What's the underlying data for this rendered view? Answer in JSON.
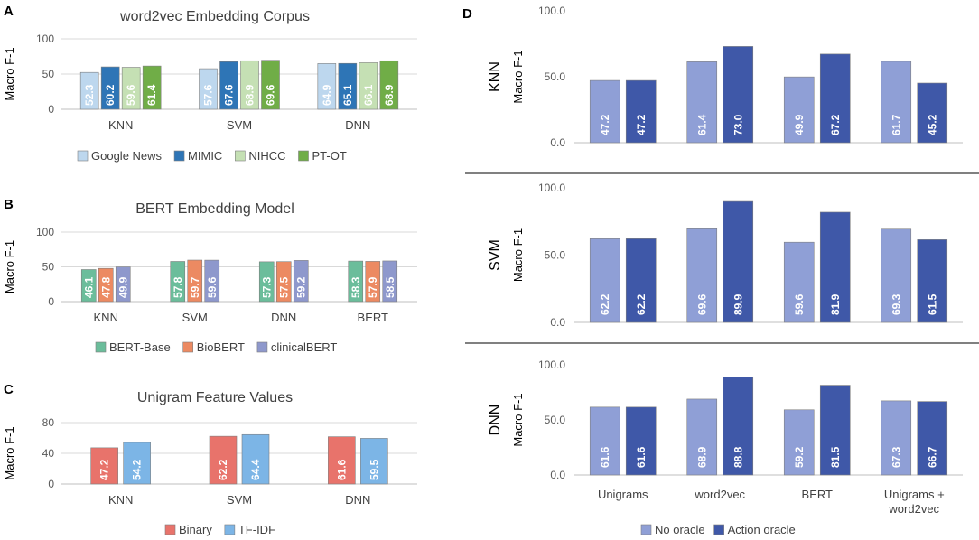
{
  "chart_data": [
    {
      "panel": "A",
      "type": "bar",
      "title": "word2vec Embedding Corpus",
      "ylabel": "Macro F-1",
      "ylim": [
        0,
        100
      ],
      "yticks": [
        "0",
        "50",
        "100"
      ],
      "categories": [
        "KNN",
        "SVM",
        "DNN"
      ],
      "series": [
        {
          "name": "Google News",
          "color": "#bdd7ee",
          "values": [
            52.3,
            57.6,
            64.9
          ],
          "labels": [
            "52.3",
            "57.6",
            "64.9"
          ]
        },
        {
          "name": "MIMIC",
          "color": "#2e75b6",
          "values": [
            60.2,
            67.6,
            65.1
          ],
          "labels": [
            "60.2",
            "67.6",
            "65.1"
          ]
        },
        {
          "name": "NIHCC",
          "color": "#c5e0b4",
          "values": [
            59.6,
            68.9,
            66.1
          ],
          "labels": [
            "59.6",
            "68.9",
            "66.1"
          ]
        },
        {
          "name": "PT-OT",
          "color": "#70ad47",
          "values": [
            61.4,
            69.6,
            68.9
          ],
          "labels": [
            "61.4",
            "69.6",
            "68.9"
          ]
        }
      ]
    },
    {
      "panel": "B",
      "type": "bar",
      "title": "BERT Embedding Model",
      "ylabel": "Macro F-1",
      "ylim": [
        0,
        100
      ],
      "yticks": [
        "0",
        "50",
        "100"
      ],
      "categories": [
        "KNN",
        "SVM",
        "DNN",
        "BERT"
      ],
      "series": [
        {
          "name": "BERT-Base",
          "color": "#6bbd9b",
          "values": [
            46.1,
            57.8,
            57.3,
            58.3
          ],
          "labels": [
            "46.1",
            "57.8",
            "57.3",
            "58.3"
          ]
        },
        {
          "name": "BioBERT",
          "color": "#ec8a62",
          "values": [
            47.8,
            59.7,
            57.5,
            57.9
          ],
          "labels": [
            "47.8",
            "59.7",
            "57.5",
            "57.9"
          ]
        },
        {
          "name": "clinicalBERT",
          "color": "#8e98cc",
          "values": [
            49.9,
            59.6,
            59.2,
            58.5
          ],
          "labels": [
            "49.9",
            "59.6",
            "59.2",
            "58.5"
          ]
        }
      ]
    },
    {
      "panel": "C",
      "type": "bar",
      "title": "Unigram Feature Values",
      "ylabel": "Macro F-1",
      "ylim": [
        0,
        80
      ],
      "yticks": [
        "0",
        "40",
        "80"
      ],
      "categories": [
        "KNN",
        "SVM",
        "DNN"
      ],
      "series": [
        {
          "name": "Binary",
          "color": "#e8736b",
          "values": [
            47.2,
            62.2,
            61.6
          ],
          "labels": [
            "47.2",
            "62.2",
            "61.6"
          ]
        },
        {
          "name": "TF-IDF",
          "color": "#7cb5e6",
          "values": [
            54.2,
            64.4,
            59.5
          ],
          "labels": [
            "54.2",
            "64.4",
            "59.5"
          ]
        }
      ]
    },
    {
      "panel": "D",
      "type": "bar",
      "ylabel": "Macro F-1",
      "ylim": [
        0,
        100
      ],
      "yticks": [
        "0.0",
        "50.0",
        "100.0"
      ],
      "categories": [
        "Unigrams",
        "word2vec",
        "BERT",
        "Unigrams +\nword2vec"
      ],
      "legend": [
        {
          "name": "No oracle",
          "color": "#8f9fd6"
        },
        {
          "name": "Action oracle",
          "color": "#3f58a8"
        }
      ],
      "rows": [
        {
          "name": "KNN",
          "series": [
            {
              "name": "No oracle",
              "values": [
                47.2,
                61.4,
                49.9,
                61.7
              ],
              "labels": [
                "47.2",
                "61.4",
                "49.9",
                "61.7"
              ]
            },
            {
              "name": "Action oracle",
              "values": [
                47.2,
                73.0,
                67.2,
                45.2
              ],
              "labels": [
                "47.2",
                "73.0",
                "67.2",
                "45.2"
              ]
            }
          ]
        },
        {
          "name": "SVM",
          "series": [
            {
              "name": "No oracle",
              "values": [
                62.2,
                69.6,
                59.6,
                69.3
              ],
              "labels": [
                "62.2",
                "69.6",
                "59.6",
                "69.3"
              ]
            },
            {
              "name": "Action oracle",
              "values": [
                62.2,
                89.9,
                81.9,
                61.5
              ],
              "labels": [
                "62.2",
                "89.9",
                "81.9",
                "61.5"
              ]
            }
          ]
        },
        {
          "name": "DNN",
          "series": [
            {
              "name": "No oracle",
              "values": [
                61.6,
                68.9,
                59.2,
                67.3
              ],
              "labels": [
                "61.6",
                "68.9",
                "59.2",
                "67.3"
              ]
            },
            {
              "name": "Action oracle",
              "values": [
                61.6,
                88.8,
                81.5,
                66.7
              ],
              "labels": [
                "61.6",
                "88.8",
                "81.5",
                "66.7"
              ]
            }
          ]
        }
      ]
    }
  ]
}
